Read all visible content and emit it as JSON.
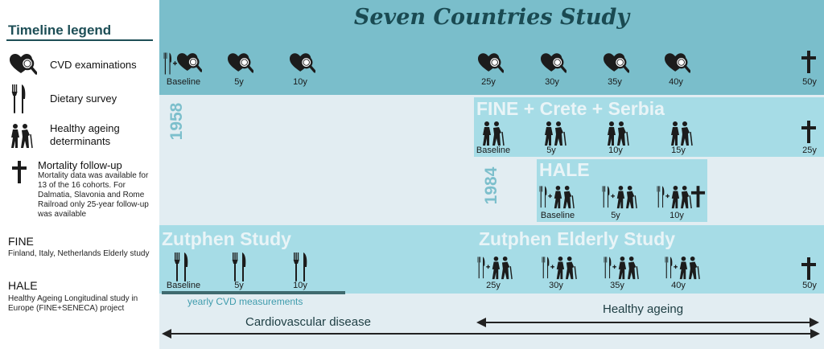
{
  "title": "Seven Countries Study",
  "colors": {
    "teal_dark": "#7abecb",
    "teal_mid": "#a6dce6",
    "pale": "#e2edf2",
    "text_dark": "#1a4a52"
  },
  "legend": {
    "title": "Timeline legend",
    "items": [
      {
        "icon": "cvd-examination-icon",
        "label": "CVD examinations"
      },
      {
        "icon": "dietary-survey-icon",
        "label": "Dietary survey"
      },
      {
        "icon": "healthy-ageing-icon",
        "label": "Healthy ageing determinants"
      },
      {
        "icon": "mortality-cross-icon",
        "label": "Mortality follow-up",
        "note": "Mortality data was available for 13 of the 16 cohorts. For Dalmatia, Slavonia and Rome Railroad only 25-year follow-up was available"
      }
    ],
    "fine_label": "FINE",
    "fine_desc": "Finland, Italy, Netherlands Elderly study",
    "hale_label": "HALE",
    "hale_desc": "Healthy Ageing Longitudinal study in Europe (FINE+SENECA) project"
  },
  "years": {
    "y1958": "1958",
    "y1984": "1984"
  },
  "scs": {
    "labels": [
      "Baseline",
      "5y",
      "10y",
      "25y",
      "30y",
      "35y",
      "40y",
      "50y"
    ]
  },
  "fine": {
    "title": "FINE + Crete + Serbia",
    "labels": [
      "Baseline",
      "5y",
      "10y",
      "15y",
      "25y"
    ]
  },
  "hale": {
    "title": "HALE",
    "labels": [
      "Baseline",
      "5y",
      "10y"
    ]
  },
  "zutphen": {
    "title": "Zutphen Study",
    "labels": [
      "Baseline",
      "5y",
      "10y"
    ],
    "yearly": "yearly CVD measurements"
  },
  "zutphen_elderly": {
    "title": "Zutphen Elderly Study",
    "labels": [
      "25y",
      "30y",
      "35y",
      "40y",
      "50y"
    ]
  },
  "arrows": {
    "healthy": "Healthy ageing",
    "cvd": "Cardiovascular disease"
  }
}
